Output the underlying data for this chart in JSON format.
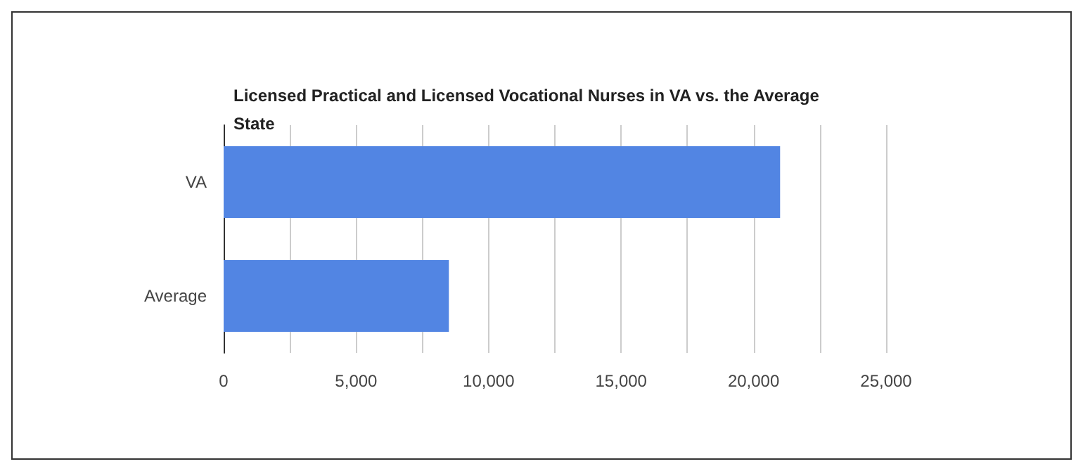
{
  "chart_data": {
    "type": "bar",
    "orientation": "horizontal",
    "title": "Licensed Practical and Licensed Vocational Nurses in VA vs. the Average State",
    "categories": [
      "VA",
      "Average"
    ],
    "values": [
      21000,
      8500
    ],
    "color": "#5285e3",
    "xlim": [
      0,
      25000
    ],
    "xticks": [
      0,
      {
        "value": 2500,
        "label": null
      },
      {
        "value": 5000,
        "label": "5,000"
      },
      {
        "value": 7500,
        "label": null
      },
      {
        "value": 10000,
        "label": "10,000"
      },
      {
        "value": 12500,
        "label": null
      },
      {
        "value": 15000,
        "label": "15,000"
      },
      {
        "value": 17500,
        "label": null
      },
      {
        "value": 20000,
        "label": "20,000"
      },
      {
        "value": 22500,
        "label": null
      },
      {
        "value": 25000,
        "label": "25,000"
      }
    ],
    "grid": "x"
  }
}
